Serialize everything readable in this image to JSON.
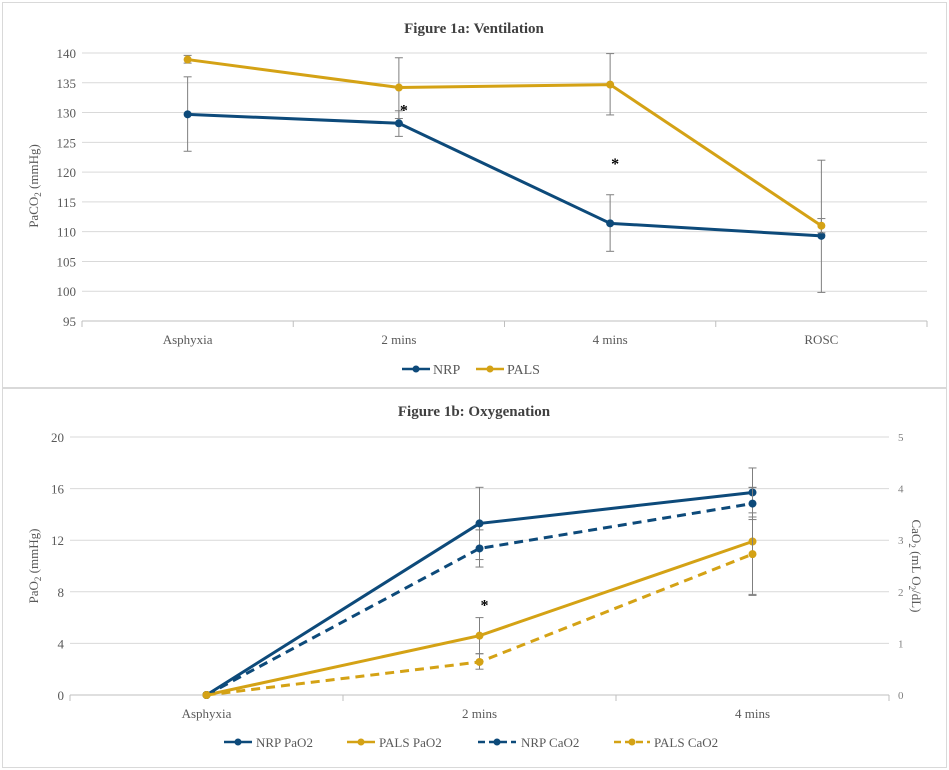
{
  "colors": {
    "nrp": "#0d4a7a",
    "pals": "#d4a215",
    "grid": "#d9d9d9",
    "axis": "#bfbfbf",
    "text": "#595959",
    "errbar": "#7f7f7f",
    "title": "#404040"
  },
  "chart_data": [
    {
      "type": "line",
      "title": "Figure 1a: Ventilation",
      "ylabel": "PaCO2 (mmHg)",
      "ylabel_parts": {
        "base": "PaCO",
        "sub": "2",
        "tail": " (mmHg)"
      },
      "categories": [
        "Asphyxia",
        "2 mins",
        "4 mins",
        "ROSC"
      ],
      "ylim": [
        95,
        140
      ],
      "yticks": [
        95,
        100,
        105,
        110,
        115,
        120,
        125,
        130,
        135,
        140
      ],
      "grid": true,
      "legend": "bottom",
      "series": [
        {
          "name": "NRP",
          "color": "#0d4a7a",
          "style": "solid",
          "values": [
            129.7,
            128.2,
            111.4,
            109.3
          ],
          "error_low": [
            123.5,
            126.0,
            106.7,
            99.8
          ],
          "error_high": [
            136.0,
            130.3,
            116.2,
            122.0
          ]
        },
        {
          "name": "PALS",
          "color": "#d4a215",
          "style": "solid",
          "values": [
            138.9,
            134.2,
            134.7,
            111.0
          ],
          "error_low": [
            138.3,
            129.0,
            129.6,
            109.8
          ],
          "error_high": [
            139.6,
            139.2,
            139.9,
            112.2
          ]
        }
      ],
      "annotations": [
        {
          "text": "*",
          "category": "2 mins",
          "y": 130.5
        },
        {
          "text": "*",
          "category": "4 mins",
          "y": 121.5
        }
      ]
    },
    {
      "type": "line",
      "title": "Figure 1b: Oxygenation",
      "ylabel": "PaO2 (mmHg)",
      "ylabel_parts": {
        "base": "PaO",
        "sub": "2",
        "tail": " (mmHg)"
      },
      "y2label": "CaO2 (mL O2/dL)",
      "y2label_parts": {
        "a": "CaO",
        "sub1": "2",
        "b": " (mL O",
        "sub2": "2",
        "c": "/dL)"
      },
      "categories": [
        "Asphyxia",
        "2 mins",
        "4 mins"
      ],
      "ylim": [
        0,
        20
      ],
      "yticks": [
        0,
        4,
        8,
        12,
        16,
        20
      ],
      "y2lim": [
        0,
        5
      ],
      "y2ticks": [
        0,
        1,
        2,
        3,
        4,
        5
      ],
      "grid": true,
      "legend": "bottom",
      "series": [
        {
          "name": "NRP PaO2",
          "color": "#0d4a7a",
          "style": "solid",
          "axis": "left",
          "values": [
            0,
            13.3,
            15.7
          ],
          "error_low": [
            0,
            10.5,
            13.8
          ],
          "error_high": [
            0,
            16.1,
            17.6
          ]
        },
        {
          "name": "PALS PaO2",
          "color": "#d4a215",
          "style": "solid",
          "axis": "left",
          "values": [
            0,
            4.6,
            11.9
          ],
          "error_low": [
            0,
            3.2,
            7.8
          ],
          "error_high": [
            0,
            6.0,
            16.1
          ]
        },
        {
          "name": "NRP CaO2",
          "color": "#0d4a7a",
          "style": "dashed",
          "axis": "right",
          "values": [
            0,
            2.84,
            3.71
          ],
          "error_low": [
            0,
            2.48,
            3.4
          ],
          "error_high": [
            0,
            3.2,
            4.02
          ]
        },
        {
          "name": "PALS CaO2",
          "color": "#d4a215",
          "style": "dashed",
          "axis": "right",
          "values": [
            0,
            0.64,
            2.73
          ],
          "error_low": [
            0,
            0.5,
            1.93
          ],
          "error_high": [
            0,
            0.8,
            3.53
          ]
        }
      ],
      "annotations": [
        {
          "text": "*",
          "category": "2 mins",
          "y": 7.0
        }
      ]
    }
  ]
}
